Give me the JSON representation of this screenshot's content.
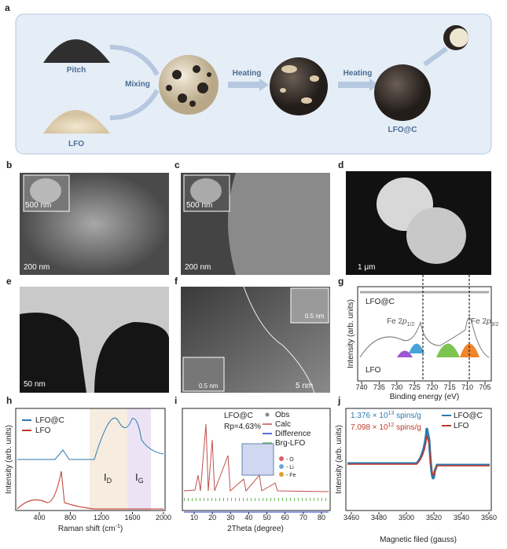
{
  "panel_a": {
    "label": "a",
    "pitch": "Pitch",
    "lfo": "LFO",
    "mixing": "Mixing",
    "heating_1": "Heating",
    "heating_2": "Heating",
    "product": "LFO@C"
  },
  "panel_b": {
    "label": "b",
    "inset_scale": "500 nm",
    "scale": "200 nm"
  },
  "panel_c": {
    "label": "c",
    "inset_scale": "500 nm",
    "scale": "200 nm"
  },
  "panel_d": {
    "label": "d",
    "scale": "1 μm"
  },
  "panel_e": {
    "label": "e",
    "scale": "50 nm"
  },
  "panel_f": {
    "label": "f",
    "inset_scale_1": "0.5 nm",
    "inset_scale_2": "0.5 nm",
    "scale": "5 nm"
  },
  "panel_g": {
    "label": "g",
    "series_top": "LFO@C",
    "series_bottom": "LFO",
    "peak_1": {
      "main": "Fe 2",
      "orbital": "p",
      "sub": "1/2"
    },
    "peak_2": {
      "main": "Fe 2",
      "orbital": "p",
      "sub": "3/2"
    },
    "y_label": "Intensity (arb. units)",
    "x_label": "Binding energy (eV)",
    "x_ticks": [
      740,
      735,
      730,
      725,
      720,
      715,
      710,
      705
    ]
  },
  "panel_h": {
    "label": "h",
    "legend": [
      "LFO@C",
      "LFO"
    ],
    "band_d": {
      "main": "I",
      "sub": "D"
    },
    "band_g": {
      "main": "I",
      "sub": "G"
    },
    "y_label": "Intensity (arb. units)",
    "x_label": {
      "main": "Raman shift (cm",
      "sup": "-1",
      "end": ")"
    },
    "x_ticks": [
      400,
      800,
      1200,
      1600,
      2000
    ]
  },
  "panel_i": {
    "label": "i",
    "sample": "LFO@C",
    "rp": "Rp=4.63%",
    "legend": [
      "Obs",
      "Calc",
      "Difference",
      "Brg-LFO"
    ],
    "atoms": [
      "- O",
      "- Li",
      "- Fe"
    ],
    "x_label": "2Theta (degree)",
    "x_ticks": [
      10,
      20,
      30,
      40,
      50,
      60,
      70,
      80
    ]
  },
  "panel_j": {
    "label": "j",
    "spins_1": {
      "main": "1.376 × 10",
      "sup": "13",
      "end": " spins/g"
    },
    "spins_2": {
      "main": "7.098 × 10",
      "sup": "12",
      "end": " spins/g"
    },
    "legend": [
      "LFO@C",
      "LFO"
    ],
    "y_label": "Intensity (arb. units)",
    "x_label": "Magnetic filed (gauss)",
    "x_ticks": [
      3460,
      3480,
      3500,
      3520,
      3540,
      3560
    ]
  }
}
